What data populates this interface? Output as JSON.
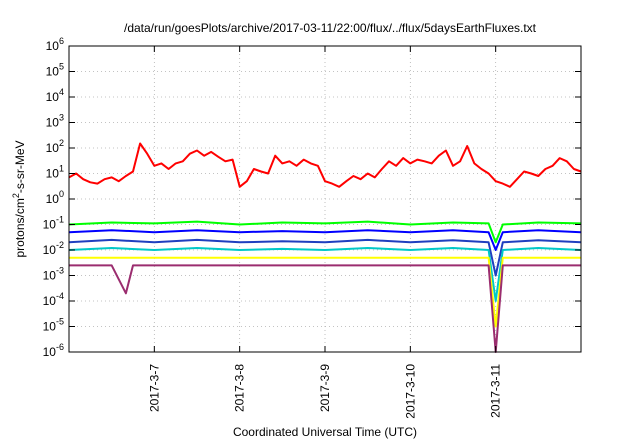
{
  "chart_data": {
    "type": "line",
    "title": "/data/run/goesPlots/archive/2017-03-11/22:00/flux/../flux/5daysEarthFluxes.txt",
    "xlabel": "Coordinated Universal Time (UTC)",
    "ylabel_main": "protons/cm",
    "ylabel_sup": "2",
    "ylabel_rest": "-s-sr-MeV",
    "y_scale": "log",
    "ylim": [
      1e-06,
      1000000.0
    ],
    "xlim": [
      "2017-03-06T00:00",
      "2017-03-12T00:00"
    ],
    "grid": true,
    "y_ticks": [
      {
        "base": "10",
        "exp": "-6",
        "value": 1e-06
      },
      {
        "base": "10",
        "exp": "-5",
        "value": 1e-05
      },
      {
        "base": "10",
        "exp": "-4",
        "value": 0.0001
      },
      {
        "base": "10",
        "exp": "-3",
        "value": 0.001
      },
      {
        "base": "10",
        "exp": "-2",
        "value": 0.01
      },
      {
        "base": "10",
        "exp": "-1",
        "value": 0.1
      },
      {
        "base": "10",
        "exp": "0",
        "value": 1
      },
      {
        "base": "10",
        "exp": "1",
        "value": 10
      },
      {
        "base": "10",
        "exp": "2",
        "value": 100
      },
      {
        "base": "10",
        "exp": "3",
        "value": 1000
      },
      {
        "base": "10",
        "exp": "4",
        "value": 10000
      },
      {
        "base": "10",
        "exp": "5",
        "value": 100000
      },
      {
        "base": "10",
        "exp": "6",
        "value": 1000000
      }
    ],
    "x_ticks": [
      {
        "label": "2017-3-7",
        "value": "2017-03-07T00:00"
      },
      {
        "label": "2017-3-8",
        "value": "2017-03-08T00:00"
      },
      {
        "label": "2017-3-9",
        "value": "2017-03-09T00:00"
      },
      {
        "label": "2017-3-10",
        "value": "2017-03-10T00:00"
      },
      {
        "label": "2017-3-11",
        "value": "2017-03-11T00:00"
      }
    ],
    "series": [
      {
        "color": "#ff0000",
        "points": [
          [
            "2017-03-06T00:00",
            7
          ],
          [
            "2017-03-06T02:00",
            10
          ],
          [
            "2017-03-06T04:00",
            6
          ],
          [
            "2017-03-06T06:00",
            4.5
          ],
          [
            "2017-03-06T08:00",
            4
          ],
          [
            "2017-03-06T10:00",
            6
          ],
          [
            "2017-03-06T12:00",
            7
          ],
          [
            "2017-03-06T14:00",
            5
          ],
          [
            "2017-03-06T16:00",
            8
          ],
          [
            "2017-03-06T18:00",
            12
          ],
          [
            "2017-03-06T20:00",
            150
          ],
          [
            "2017-03-06T22:00",
            60
          ],
          [
            "2017-03-07T00:00",
            20
          ],
          [
            "2017-03-07T02:00",
            25
          ],
          [
            "2017-03-07T04:00",
            15
          ],
          [
            "2017-03-07T06:00",
            25
          ],
          [
            "2017-03-07T08:00",
            30
          ],
          [
            "2017-03-07T10:00",
            60
          ],
          [
            "2017-03-07T12:00",
            80
          ],
          [
            "2017-03-07T14:00",
            50
          ],
          [
            "2017-03-07T16:00",
            70
          ],
          [
            "2017-03-07T18:00",
            45
          ],
          [
            "2017-03-07T20:00",
            30
          ],
          [
            "2017-03-07T22:00",
            35
          ],
          [
            "2017-03-08T00:00",
            3
          ],
          [
            "2017-03-08T02:00",
            5
          ],
          [
            "2017-03-08T04:00",
            15
          ],
          [
            "2017-03-08T06:00",
            12
          ],
          [
            "2017-03-08T08:00",
            10
          ],
          [
            "2017-03-08T10:00",
            50
          ],
          [
            "2017-03-08T12:00",
            25
          ],
          [
            "2017-03-08T14:00",
            30
          ],
          [
            "2017-03-08T16:00",
            20
          ],
          [
            "2017-03-08T18:00",
            35
          ],
          [
            "2017-03-08T20:00",
            25
          ],
          [
            "2017-03-08T22:00",
            20
          ],
          [
            "2017-03-09T00:00",
            5
          ],
          [
            "2017-03-09T02:00",
            4
          ],
          [
            "2017-03-09T04:00",
            3
          ],
          [
            "2017-03-09T06:00",
            5
          ],
          [
            "2017-03-09T08:00",
            8
          ],
          [
            "2017-03-09T10:00",
            6
          ],
          [
            "2017-03-09T12:00",
            10
          ],
          [
            "2017-03-09T14:00",
            7
          ],
          [
            "2017-03-09T16:00",
            15
          ],
          [
            "2017-03-09T18:00",
            30
          ],
          [
            "2017-03-09T20:00",
            20
          ],
          [
            "2017-03-09T22:00",
            40
          ],
          [
            "2017-03-10T00:00",
            25
          ],
          [
            "2017-03-10T02:00",
            35
          ],
          [
            "2017-03-10T04:00",
            30
          ],
          [
            "2017-03-10T06:00",
            25
          ],
          [
            "2017-03-10T08:00",
            50
          ],
          [
            "2017-03-10T10:00",
            80
          ],
          [
            "2017-03-10T12:00",
            20
          ],
          [
            "2017-03-10T14:00",
            30
          ],
          [
            "2017-03-10T16:00",
            120
          ],
          [
            "2017-03-10T18:00",
            25
          ],
          [
            "2017-03-10T20:00",
            15
          ],
          [
            "2017-03-10T22:00",
            10
          ],
          [
            "2017-03-11T00:00",
            5
          ],
          [
            "2017-03-11T02:00",
            4
          ],
          [
            "2017-03-11T04:00",
            3
          ],
          [
            "2017-03-11T06:00",
            6
          ],
          [
            "2017-03-11T08:00",
            12
          ],
          [
            "2017-03-11T10:00",
            10
          ],
          [
            "2017-03-11T12:00",
            8
          ],
          [
            "2017-03-11T14:00",
            15
          ],
          [
            "2017-03-11T16:00",
            20
          ],
          [
            "2017-03-11T18:00",
            40
          ],
          [
            "2017-03-11T20:00",
            30
          ],
          [
            "2017-03-11T22:00",
            15
          ],
          [
            "2017-03-12T00:00",
            12
          ]
        ]
      },
      {
        "color": "#00ff00",
        "points": [
          [
            "2017-03-06T00:00",
            0.1
          ],
          [
            "2017-03-06T12:00",
            0.12
          ],
          [
            "2017-03-07T00:00",
            0.11
          ],
          [
            "2017-03-07T12:00",
            0.13
          ],
          [
            "2017-03-08T00:00",
            0.1
          ],
          [
            "2017-03-08T12:00",
            0.12
          ],
          [
            "2017-03-09T00:00",
            0.11
          ],
          [
            "2017-03-09T12:00",
            0.13
          ],
          [
            "2017-03-10T00:00",
            0.1
          ],
          [
            "2017-03-10T12:00",
            0.12
          ],
          [
            "2017-03-10T22:00",
            0.11
          ],
          [
            "2017-03-11T00:00",
            0.02
          ],
          [
            "2017-03-11T02:00",
            0.1
          ],
          [
            "2017-03-11T12:00",
            0.12
          ],
          [
            "2017-03-12T00:00",
            0.11
          ]
        ]
      },
      {
        "color": "#0000ff",
        "points": [
          [
            "2017-03-06T00:00",
            0.05
          ],
          [
            "2017-03-06T12:00",
            0.06
          ],
          [
            "2017-03-07T00:00",
            0.05
          ],
          [
            "2017-03-07T12:00",
            0.06
          ],
          [
            "2017-03-08T00:00",
            0.05
          ],
          [
            "2017-03-08T12:00",
            0.055
          ],
          [
            "2017-03-09T00:00",
            0.05
          ],
          [
            "2017-03-09T12:00",
            0.06
          ],
          [
            "2017-03-10T00:00",
            0.05
          ],
          [
            "2017-03-10T12:00",
            0.06
          ],
          [
            "2017-03-10T22:00",
            0.05
          ],
          [
            "2017-03-11T00:00",
            0.01
          ],
          [
            "2017-03-11T02:00",
            0.05
          ],
          [
            "2017-03-11T12:00",
            0.06
          ],
          [
            "2017-03-12T00:00",
            0.05
          ]
        ]
      },
      {
        "color": "#1f3fbf",
        "points": [
          [
            "2017-03-06T00:00",
            0.02
          ],
          [
            "2017-03-06T12:00",
            0.025
          ],
          [
            "2017-03-07T00:00",
            0.02
          ],
          [
            "2017-03-07T12:00",
            0.025
          ],
          [
            "2017-03-08T00:00",
            0.02
          ],
          [
            "2017-03-08T12:00",
            0.022
          ],
          [
            "2017-03-09T00:00",
            0.02
          ],
          [
            "2017-03-09T12:00",
            0.025
          ],
          [
            "2017-03-10T00:00",
            0.02
          ],
          [
            "2017-03-10T12:00",
            0.024
          ],
          [
            "2017-03-10T22:00",
            0.02
          ],
          [
            "2017-03-11T00:00",
            0.001
          ],
          [
            "2017-03-11T02:00",
            0.02
          ],
          [
            "2017-03-11T12:00",
            0.024
          ],
          [
            "2017-03-12T00:00",
            0.02
          ]
        ]
      },
      {
        "color": "#00c8c8",
        "points": [
          [
            "2017-03-06T00:00",
            0.01
          ],
          [
            "2017-03-06T12:00",
            0.012
          ],
          [
            "2017-03-07T00:00",
            0.01
          ],
          [
            "2017-03-07T12:00",
            0.012
          ],
          [
            "2017-03-08T00:00",
            0.01
          ],
          [
            "2017-03-08T12:00",
            0.011
          ],
          [
            "2017-03-09T00:00",
            0.01
          ],
          [
            "2017-03-09T12:00",
            0.012
          ],
          [
            "2017-03-10T00:00",
            0.01
          ],
          [
            "2017-03-10T12:00",
            0.012
          ],
          [
            "2017-03-10T22:00",
            0.01
          ],
          [
            "2017-03-11T00:00",
            0.0001
          ],
          [
            "2017-03-11T02:00",
            0.01
          ],
          [
            "2017-03-11T12:00",
            0.012
          ],
          [
            "2017-03-12T00:00",
            0.01
          ]
        ]
      },
      {
        "color": "#ffff00",
        "points": [
          [
            "2017-03-06T00:00",
            0.005
          ],
          [
            "2017-03-07T00:00",
            0.005
          ],
          [
            "2017-03-08T00:00",
            0.005
          ],
          [
            "2017-03-09T00:00",
            0.005
          ],
          [
            "2017-03-10T00:00",
            0.005
          ],
          [
            "2017-03-10T22:00",
            0.005
          ],
          [
            "2017-03-11T00:00",
            1e-05
          ],
          [
            "2017-03-11T02:00",
            0.005
          ],
          [
            "2017-03-12T00:00",
            0.005
          ]
        ]
      },
      {
        "color": "#9b2d6f",
        "points": [
          [
            "2017-03-06T00:00",
            0.0025
          ],
          [
            "2017-03-06T12:00",
            0.0025
          ],
          [
            "2017-03-06T16:00",
            0.0002
          ],
          [
            "2017-03-06T18:00",
            0.0025
          ],
          [
            "2017-03-07T00:00",
            0.0025
          ],
          [
            "2017-03-08T00:00",
            0.0025
          ],
          [
            "2017-03-09T00:00",
            0.0025
          ],
          [
            "2017-03-10T00:00",
            0.0025
          ],
          [
            "2017-03-10T22:00",
            0.0025
          ],
          [
            "2017-03-11T00:00",
            1e-06
          ],
          [
            "2017-03-11T02:00",
            0.0025
          ],
          [
            "2017-03-12T00:00",
            0.0025
          ]
        ]
      }
    ]
  }
}
